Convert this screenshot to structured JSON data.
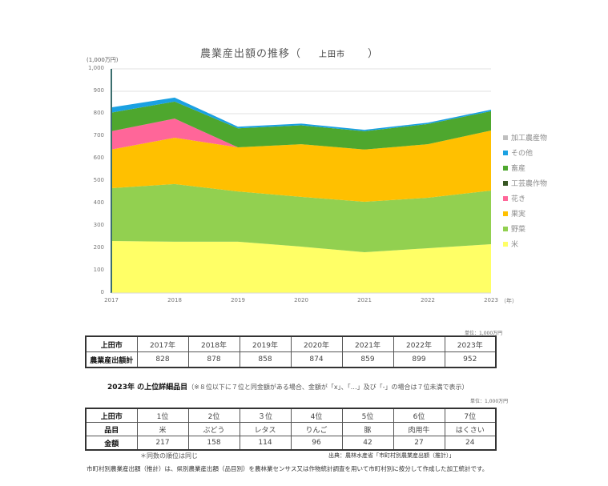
{
  "chart": {
    "title_prefix": "農業産出額の推移（",
    "title_city": "上田市",
    "title_suffix": "）",
    "y_unit": "(1,000万円)",
    "x_unit": "（年）",
    "y_ticks": [
      "0",
      "100",
      "200",
      "300",
      "400",
      "500",
      "600",
      "700",
      "800",
      "900",
      "1,000"
    ],
    "x_ticks": [
      "2017",
      "2018",
      "2019",
      "2020",
      "2021",
      "2022",
      "2023"
    ]
  },
  "chart_data": {
    "type": "area",
    "stacked": true,
    "title": "農業産出額の推移（上田市）",
    "xlabel": "（年）",
    "ylabel": "(1,000万円)",
    "ylim": [
      0,
      1000
    ],
    "grid": true,
    "legend_position": "right",
    "x": [
      "2017",
      "2018",
      "2019",
      "2020",
      "2021",
      "2022",
      "2023"
    ],
    "series": [
      {
        "name": "米",
        "color": "#FFFF66",
        "values": [
          232,
          229,
          229,
          207,
          182,
          200,
          218
        ]
      },
      {
        "name": "野菜",
        "color": "#92D050",
        "values": [
          236,
          257,
          224,
          222,
          225,
          225,
          239
        ]
      },
      {
        "name": "果実",
        "color": "#FFC000",
        "values": [
          172,
          207,
          197,
          235,
          233,
          239,
          268
        ]
      },
      {
        "name": "花き",
        "color": "#FF6699",
        "values": [
          82,
          85,
          0,
          0,
          0,
          0,
          0
        ]
      },
      {
        "name": "工芸農作物",
        "color": "#375623",
        "values": [
          0,
          0,
          0,
          0,
          0,
          0,
          0
        ]
      },
      {
        "name": "畜産",
        "color": "#4EA72E",
        "values": [
          83,
          76,
          85,
          84,
          82,
          90,
          86
        ]
      },
      {
        "name": "その他",
        "color": "#1BA1E2",
        "values": [
          23,
          18,
          7,
          8,
          6,
          6,
          7
        ]
      },
      {
        "name": "加工農産物",
        "color": "#BFBFBF",
        "values": [
          0,
          0,
          0,
          0,
          0,
          0,
          0
        ]
      }
    ]
  },
  "legend": [
    {
      "label": "加工農産物",
      "color": "#BFBFBF"
    },
    {
      "label": "その他",
      "color": "#1BA1E2"
    },
    {
      "label": "畜産",
      "color": "#4EA72E"
    },
    {
      "label": "工芸農作物",
      "color": "#375623"
    },
    {
      "label": "花き",
      "color": "#FF6699"
    },
    {
      "label": "果実",
      "color": "#FFC000"
    },
    {
      "label": "野菜",
      "color": "#92D050"
    },
    {
      "label": "米",
      "color": "#FFFF66"
    }
  ],
  "table1": {
    "unit": "単位：1,000万円",
    "corner": "上田市",
    "row_label": "農業産出額計",
    "years": [
      "2017年",
      "2018年",
      "2019年",
      "2020年",
      "2021年",
      "2022年",
      "2023年"
    ],
    "values": [
      "828",
      "878",
      "858",
      "874",
      "859",
      "899",
      "952"
    ]
  },
  "section2": {
    "title": "2023年 の上位詳細品目",
    "note": "（※８位以下に７位と同金額がある場合、金額が「x」、「…」及び「-」の場合は７位未満で表示）",
    "unit": "単位：1,000万円"
  },
  "table2": {
    "corner": "上田市",
    "row_item_label": "品目",
    "row_amount_label": "金額",
    "ranks": [
      "1位",
      "2位",
      "３位",
      "4位",
      "5位",
      "6位",
      "7位"
    ],
    "items": [
      "米",
      "ぶどう",
      "レタス",
      "りんご",
      "豚",
      "肉用牛",
      "はくさい"
    ],
    "amounts": [
      "217",
      "158",
      "114",
      "96",
      "42",
      "27",
      "24"
    ]
  },
  "footnote": "＊同数の順位は同じ",
  "source": "出典：農林水産省「市町村別農業産出額（推計）」",
  "description": "市町村別農業産出額（推計）は、県別農業産出額（品目別）を農林業センサス又は作物統計調査を用いて市町村別に按分して作成した加工統計です。"
}
